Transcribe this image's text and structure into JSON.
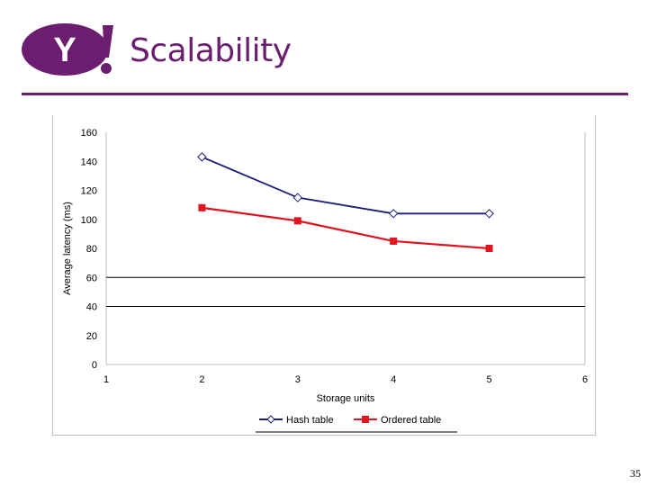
{
  "slide": {
    "title": "Scalability",
    "page_number": "35",
    "logo_text": "Y!",
    "brand_color": "#6b1e6f"
  },
  "chart_data": {
    "type": "line",
    "x": [
      2,
      3,
      4,
      5
    ],
    "series": [
      {
        "name": "Hash table",
        "values": [
          143,
          115,
          104,
          104
        ],
        "color": "#1c1c7a",
        "marker": "diamond"
      },
      {
        "name": "Ordered table",
        "values": [
          108,
          99,
          85,
          80
        ],
        "color": "#e0141e",
        "marker": "square"
      }
    ],
    "xlabel": "Storage units",
    "ylabel": "Average latency (ms)",
    "xlim": [
      1,
      6
    ],
    "ylim": [
      0,
      160
    ],
    "xticks": [
      "1",
      "2",
      "3",
      "4",
      "5",
      "6"
    ],
    "yticks": [
      "0",
      "20",
      "40",
      "60",
      "80",
      "100",
      "120",
      "140",
      "160"
    ],
    "gridlines_y": [
      40,
      60
    ],
    "legend_position": "bottom"
  }
}
